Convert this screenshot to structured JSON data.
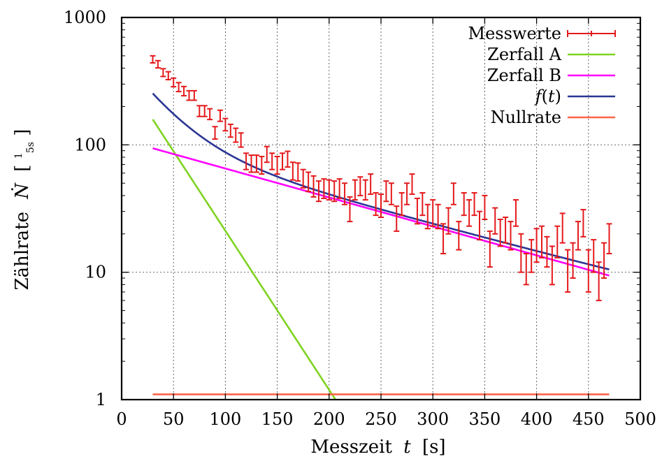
{
  "chart_data": {
    "type": "scatter",
    "xlabel_parts": {
      "text": "Messzeit",
      "var": "t",
      "unit": "[s]"
    },
    "ylabel_parts": {
      "text": "Zählrate",
      "var": "Ṅ",
      "unit_open": "[",
      "unit_num": "1",
      "unit_den": "5s",
      "unit_close": "]"
    },
    "xlim": [
      0,
      500
    ],
    "ylim": [
      1,
      1000
    ],
    "yscale": "log",
    "grid": true,
    "legend_position": "top-right",
    "x_ticks": [
      {
        "value": 0,
        "label": "0"
      },
      {
        "value": 50,
        "label": "50"
      },
      {
        "value": 100,
        "label": "100"
      },
      {
        "value": 150,
        "label": "150"
      },
      {
        "value": 200,
        "label": "200"
      },
      {
        "value": 250,
        "label": "250"
      },
      {
        "value": 300,
        "label": "300"
      },
      {
        "value": 350,
        "label": "350"
      },
      {
        "value": 400,
        "label": "400"
      },
      {
        "value": 450,
        "label": "450"
      },
      {
        "value": 500,
        "label": "500"
      }
    ],
    "y_ticks": [
      {
        "value": 1,
        "label": "1"
      },
      {
        "value": 10,
        "label": "10"
      },
      {
        "value": 100,
        "label": "100"
      },
      {
        "value": 1000,
        "label": "1000"
      }
    ],
    "series": [
      {
        "name": "Messwerte",
        "kind": "errorbar",
        "color": "#e41a1c",
        "x": [
          30,
          35,
          40,
          45,
          50,
          55,
          60,
          65,
          70,
          75,
          80,
          85,
          90,
          95,
          100,
          105,
          110,
          115,
          120,
          125,
          130,
          135,
          140,
          145,
          150,
          155,
          160,
          165,
          170,
          175,
          180,
          185,
          190,
          195,
          200,
          205,
          210,
          215,
          220,
          225,
          230,
          235,
          240,
          245,
          250,
          255,
          260,
          265,
          270,
          275,
          280,
          285,
          290,
          295,
          300,
          305,
          310,
          315,
          320,
          325,
          330,
          335,
          340,
          345,
          350,
          355,
          360,
          365,
          370,
          375,
          380,
          385,
          390,
          395,
          400,
          405,
          410,
          415,
          420,
          425,
          430,
          435,
          440,
          445,
          450,
          455,
          460,
          465,
          470
        ],
        "y": [
          470,
          430,
          370,
          350,
          310,
          285,
          265,
          245,
          245,
          185,
          185,
          175,
          125,
          170,
          145,
          130,
          120,
          110,
          75,
          72,
          72,
          70,
          85,
          75,
          70,
          75,
          78,
          63,
          62,
          55,
          52,
          48,
          44,
          46,
          45,
          44,
          46,
          42,
          32,
          45,
          48,
          45,
          50,
          35,
          34,
          44,
          42,
          27,
          35,
          42,
          50,
          31,
          35,
          28,
          30,
          28,
          19,
          26,
          42,
          20,
          35,
          30,
          35,
          24,
          33,
          16,
          26,
          21,
          22,
          20,
          30,
          15,
          11,
          14,
          17,
          18,
          15,
          12,
          18,
          23,
          11,
          13,
          20,
          25,
          11,
          14,
          9,
          13,
          19
        ],
        "err": [
          30,
          28,
          26,
          25,
          24,
          23,
          22,
          21,
          21,
          18,
          18,
          17,
          14,
          17,
          16,
          15,
          15,
          14,
          11,
          11,
          11,
          11,
          12,
          11,
          11,
          11,
          11,
          10,
          10,
          9,
          9,
          9,
          8,
          8,
          8,
          8,
          8,
          8,
          7,
          8,
          8,
          8,
          9,
          7,
          7,
          8,
          8,
          6,
          7,
          8,
          9,
          7,
          7,
          6,
          7,
          6,
          5,
          6,
          8,
          5,
          7,
          7,
          7,
          6,
          7,
          5,
          6,
          5,
          5,
          5,
          7,
          5,
          3,
          4,
          5,
          5,
          4,
          4,
          5,
          6,
          4,
          4,
          5,
          6,
          4,
          4,
          3,
          4,
          5
        ]
      },
      {
        "name": "Zerfall A",
        "kind": "line",
        "color": "#7fd321",
        "model": {
          "A": 375,
          "lambda": 0.02875
        },
        "range": [
          30,
          237
        ]
      },
      {
        "name": "Zerfall B",
        "kind": "line",
        "color": "#ff00ff",
        "model": {
          "A": 110,
          "lambda": 0.00523
        },
        "range": [
          30,
          470
        ]
      },
      {
        "name": "f(t)",
        "kind": "line",
        "color": "#2b3594",
        "model": {
          "components": [
            {
              "A": 375,
              "lambda": 0.02875
            },
            {
              "A": 110,
              "lambda": 0.00523
            }
          ],
          "offset": 1.1
        },
        "range": [
          30,
          470
        ]
      },
      {
        "name": "Nullrate",
        "kind": "line",
        "color": "#ff6347",
        "model": {
          "constant": 1.1
        },
        "range": [
          30,
          470
        ]
      }
    ],
    "legend": [
      {
        "label": "Messwerte",
        "color": "#e41a1c",
        "style": "errorbar"
      },
      {
        "label": "Zerfall A",
        "color": "#7fd321",
        "style": "line"
      },
      {
        "label": "Zerfall B",
        "color": "#ff00ff",
        "style": "line"
      },
      {
        "label": "f(t)",
        "color": "#2b3594",
        "style": "line"
      },
      {
        "label": "Nullrate",
        "color": "#ff6347",
        "style": "line"
      }
    ]
  }
}
